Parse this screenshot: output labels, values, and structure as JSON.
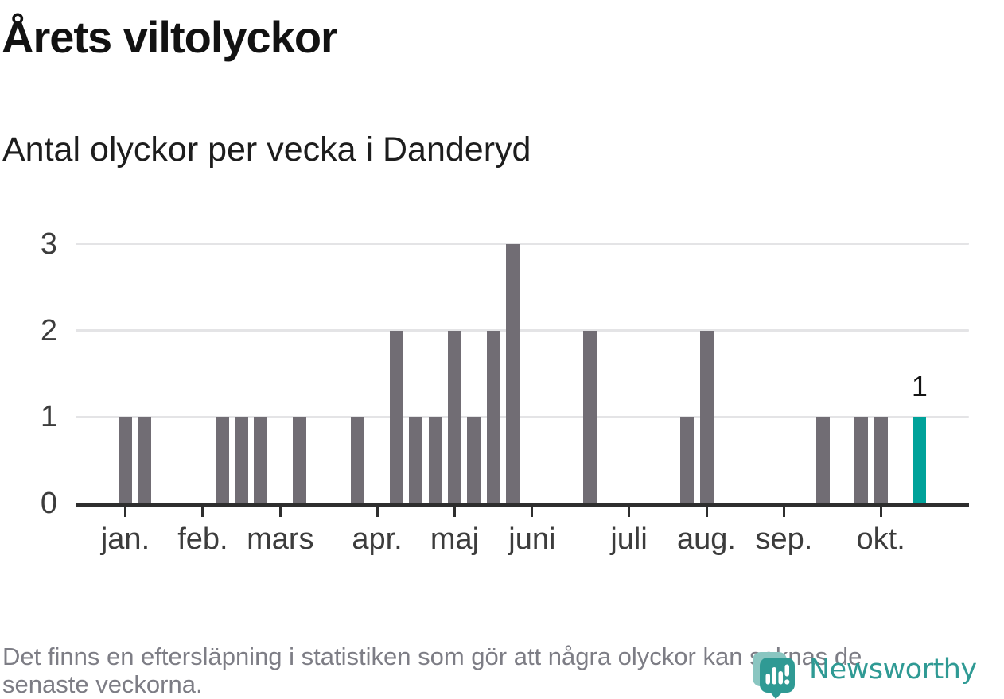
{
  "header": {
    "title": "Årets viltolyckor",
    "subtitle": "Antal olyckor per vecka i Danderyd"
  },
  "chart_data": {
    "type": "bar",
    "title": "Årets viltolyckor",
    "subtitle": "Antal olyckor per vecka i Danderyd",
    "x_unit": "week",
    "weeks_shown": 42,
    "values": [
      1,
      1,
      0,
      0,
      0,
      1,
      1,
      1,
      0,
      1,
      0,
      0,
      1,
      0,
      2,
      1,
      1,
      2,
      1,
      2,
      3,
      0,
      0,
      0,
      2,
      0,
      0,
      0,
      0,
      1,
      2,
      0,
      0,
      0,
      0,
      0,
      1,
      0,
      1,
      1,
      0,
      1
    ],
    "month_ticks": [
      {
        "label": "jan.",
        "week": 0
      },
      {
        "label": "feb.",
        "week": 4
      },
      {
        "label": "mars",
        "week": 8
      },
      {
        "label": "apr.",
        "week": 13
      },
      {
        "label": "maj",
        "week": 17
      },
      {
        "label": "juni",
        "week": 21
      },
      {
        "label": "juli",
        "week": 26
      },
      {
        "label": "aug.",
        "week": 30
      },
      {
        "label": "sep.",
        "week": 34
      },
      {
        "label": "okt.",
        "week": 39
      }
    ],
    "yticks": [
      0,
      1,
      2,
      3
    ],
    "ylim": [
      0,
      3
    ],
    "grid": "horizontal",
    "legend": "none",
    "highlight_index": 41,
    "highlight_value_label": "1",
    "colors": {
      "bar": "#716d74",
      "highlight": "#00a29a",
      "axis": "#2e2e2e",
      "grid": "#e4e4e6",
      "tick_label": "#3c3c3c"
    }
  },
  "footer": {
    "note": "Det finns en eftersläpning i statistiken som gör att några olyckor kan saknas de senaste veckorna.",
    "lines": [
      "Det finns en eftersläpning i statistiken som gör att några olyckor kan saknas de",
      "senaste veckorna."
    ]
  },
  "branding": {
    "logo_text": "Newsworthy",
    "logo_color": "#2f9a94",
    "logo_light_color": "#8ac6c1"
  }
}
